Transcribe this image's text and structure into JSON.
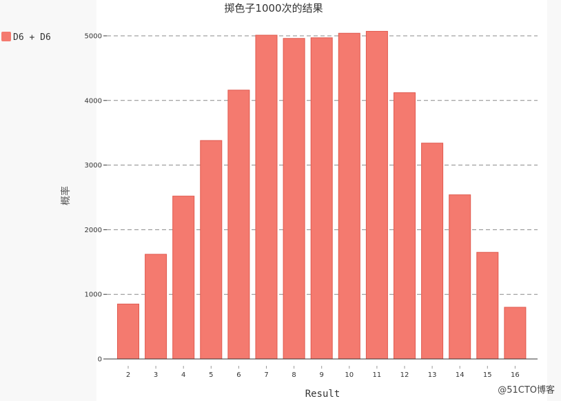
{
  "chart_data": {
    "type": "bar",
    "title": "掷色子1000次的结果",
    "xlabel": "Result",
    "ylabel": "概率",
    "categories": [
      "2",
      "3",
      "4",
      "5",
      "6",
      "7",
      "8",
      "9",
      "10",
      "11",
      "12",
      "13",
      "14",
      "15",
      "16"
    ],
    "series": [
      {
        "name": "D6 + D6",
        "color": "#f47a6f",
        "values": [
          850,
          1620,
          2520,
          3380,
          4160,
          5010,
          4960,
          4970,
          5040,
          5070,
          4120,
          3340,
          2540,
          1650,
          800
        ]
      }
    ],
    "ylim": [
      0,
      5000
    ],
    "yticks": [
      "0",
      "1000",
      "2000",
      "3000",
      "4000",
      "5000"
    ],
    "grid": "horizontal-dashed",
    "legend": "top-left"
  },
  "watermark": "@51CTO博客"
}
